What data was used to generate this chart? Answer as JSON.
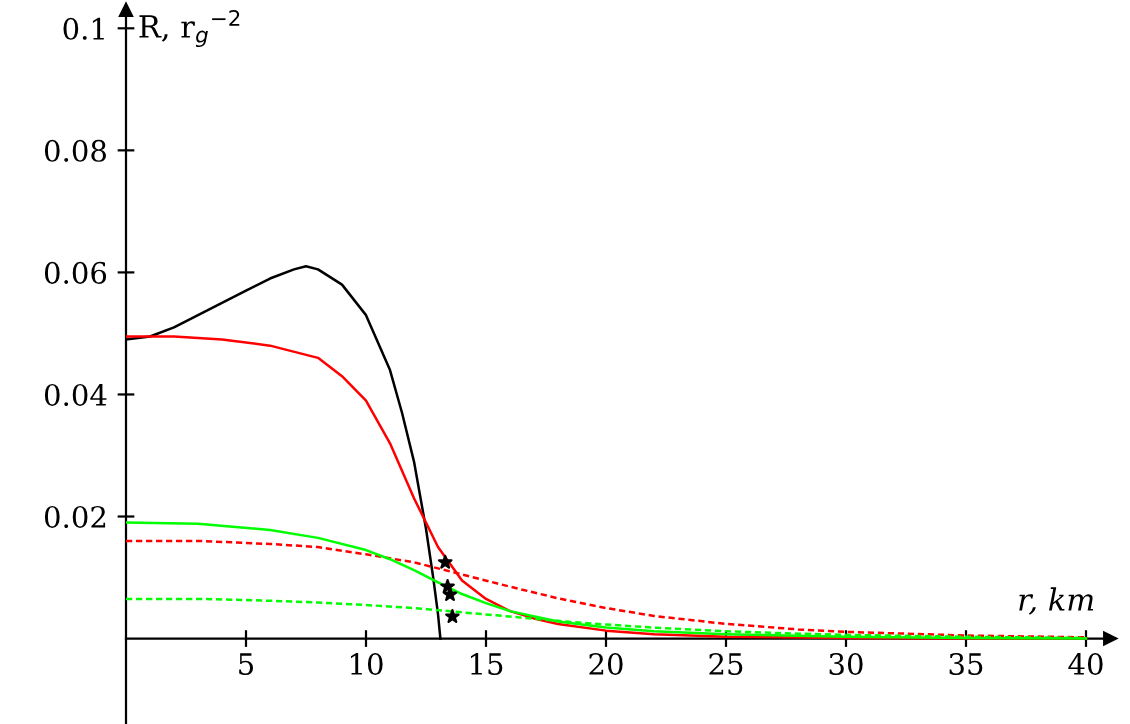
{
  "chart_data": {
    "type": "line",
    "xlabel": "r, km",
    "ylabel": "R, r$_{g}$$^{−2}$",
    "xlim": [
      0,
      41
    ],
    "ylim": [
      -0.014,
      0.103
    ],
    "xticks": [
      5,
      10,
      15,
      20,
      25,
      30,
      35,
      40
    ],
    "yticks": [
      0.02,
      0.04,
      0.06,
      0.08,
      0.1
    ],
    "grid": false,
    "legend": false,
    "series": [
      {
        "color": "#000000",
        "line_style": "solid",
        "x": [
          0,
          1,
          2,
          3,
          4,
          5,
          6,
          7,
          7.5,
          8,
          9,
          10,
          11,
          11.5,
          12,
          12.5,
          12.8,
          13.0,
          13.1
        ],
        "values": [
          0.049,
          0.0495,
          0.051,
          0.053,
          0.055,
          0.057,
          0.059,
          0.0605,
          0.061,
          0.0605,
          0.058,
          0.053,
          0.044,
          0.037,
          0.029,
          0.018,
          0.01,
          0.004,
          0
        ]
      },
      {
        "color": "#ff0000",
        "line_style": "solid",
        "x": [
          0,
          2,
          4,
          6,
          8,
          9,
          10,
          11,
          12,
          13,
          14,
          15,
          16,
          17,
          18,
          20,
          22,
          25,
          30,
          35,
          40
        ],
        "values": [
          0.0495,
          0.0495,
          0.049,
          0.048,
          0.046,
          0.043,
          0.039,
          0.032,
          0.023,
          0.015,
          0.0095,
          0.0065,
          0.0045,
          0.0033,
          0.0024,
          0.0013,
          0.0007,
          0.0003,
          0.0001,
          0,
          0
        ]
      },
      {
        "color": "#ff0000",
        "line_style": "dashed",
        "x": [
          0,
          3,
          6,
          8,
          10,
          12,
          13,
          14,
          16,
          18,
          20,
          22,
          25,
          28,
          30,
          35,
          40
        ],
        "values": [
          0.016,
          0.016,
          0.0155,
          0.015,
          0.0138,
          0.0125,
          0.0115,
          0.0105,
          0.0085,
          0.0066,
          0.005,
          0.0037,
          0.0024,
          0.0015,
          0.0011,
          0.0005,
          0.0002
        ]
      },
      {
        "color": "#00ff00",
        "line_style": "solid",
        "x": [
          0,
          3,
          6,
          8,
          10,
          11,
          12,
          13,
          14,
          15,
          16,
          18,
          20,
          22,
          25,
          30,
          35,
          40
        ],
        "values": [
          0.019,
          0.0188,
          0.0178,
          0.0165,
          0.0145,
          0.013,
          0.0112,
          0.0092,
          0.0073,
          0.0058,
          0.0045,
          0.0028,
          0.0018,
          0.0012,
          0.0007,
          0.0003,
          0.0001,
          0
        ]
      },
      {
        "color": "#00ff00",
        "line_style": "dashed",
        "x": [
          0,
          3,
          6,
          8,
          10,
          12,
          14,
          16,
          18,
          20,
          22,
          25,
          28,
          30,
          35,
          40
        ],
        "values": [
          0.0065,
          0.0065,
          0.0062,
          0.0059,
          0.0055,
          0.005,
          0.0043,
          0.0036,
          0.0029,
          0.0023,
          0.0018,
          0.0012,
          0.0008,
          0.0006,
          0.0003,
          0.0001
        ]
      },
      {
        "type": "scatter",
        "color": "#000000",
        "marker": "star",
        "x": [
          13.3,
          13.4,
          13.5,
          13.6
        ],
        "values": [
          0.0125,
          0.0085,
          0.0072,
          0.0036
        ]
      }
    ]
  }
}
